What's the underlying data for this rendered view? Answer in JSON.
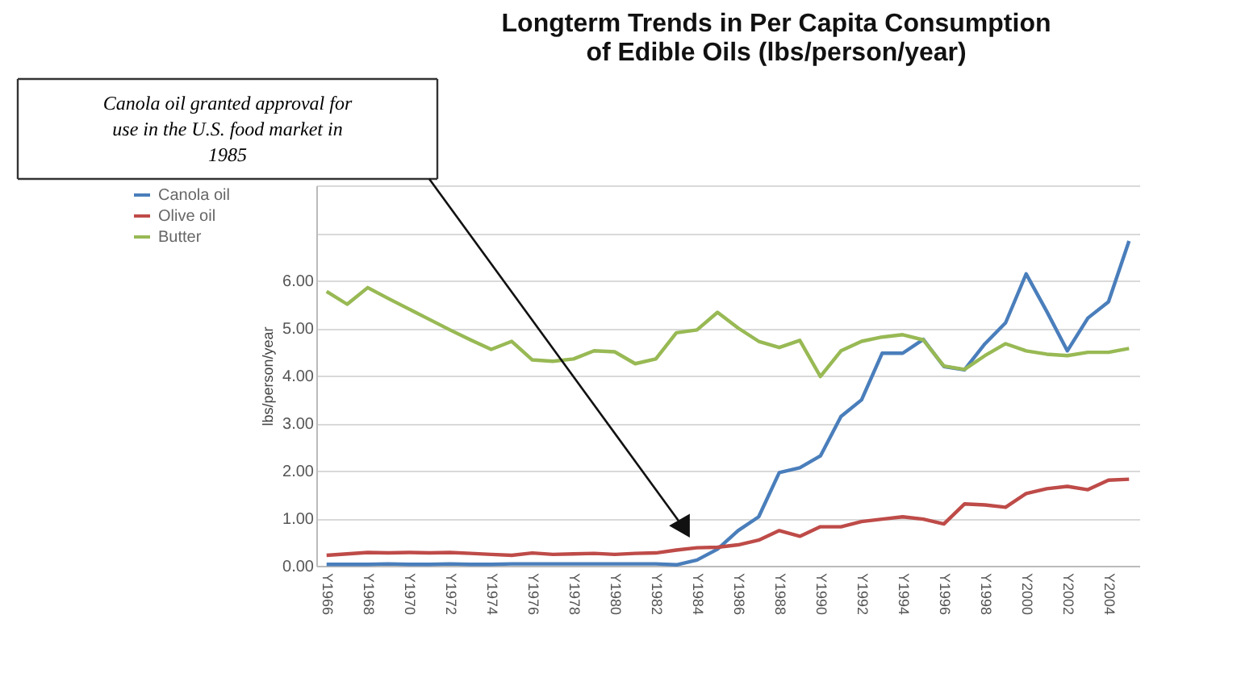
{
  "chart_data": {
    "type": "line",
    "title": [
      "Longterm Trends in Per Capita Consumption",
      "of Edible Oils (lbs/person/year)"
    ],
    "ylabel": "lbs/person/year",
    "categories": [
      "Y1966",
      null,
      "Y1968",
      null,
      "Y1970",
      null,
      "Y1972",
      null,
      "Y1974",
      null,
      "Y1976",
      null,
      "Y1978",
      null,
      "Y1980",
      null,
      "Y1982",
      null,
      "Y1984",
      null,
      "Y1986",
      null,
      "Y1988",
      null,
      "Y1990",
      null,
      "Y1992",
      null,
      "Y1994",
      null,
      "Y1996",
      null,
      "Y1998",
      null,
      "Y2000",
      null,
      "Y2002",
      null,
      "Y2004",
      null
    ],
    "series": [
      {
        "name": "Canola oil",
        "color": "#4a7ebb",
        "values": [
          0.03,
          0.03,
          0.03,
          0.04,
          0.03,
          0.03,
          0.04,
          0.03,
          0.03,
          0.04,
          0.04,
          0.04,
          0.04,
          0.04,
          0.04,
          0.04,
          0.04,
          0.02,
          0.12,
          0.35,
          0.74,
          1.03,
          1.96,
          2.06,
          2.31,
          3.14,
          3.49,
          4.47,
          4.47,
          4.76,
          4.19,
          4.12,
          4.67,
          5.11,
          6.14,
          5.35,
          4.52,
          5.21,
          5.55,
          6.83
        ]
      },
      {
        "name": "Olive oil",
        "color": "#be4b48",
        "values": [
          0.22,
          0.25,
          0.28,
          0.27,
          0.28,
          0.27,
          0.28,
          0.26,
          0.24,
          0.22,
          0.27,
          0.24,
          0.25,
          0.26,
          0.24,
          0.26,
          0.27,
          0.33,
          0.38,
          0.39,
          0.44,
          0.54,
          0.74,
          0.62,
          0.82,
          0.82,
          0.93,
          0.98,
          1.03,
          0.98,
          0.88,
          1.3,
          1.28,
          1.23,
          1.52,
          1.62,
          1.67,
          1.6,
          1.8,
          1.82
        ]
      },
      {
        "name": "Butter",
        "color": "#98b954",
        "values": [
          5.77,
          5.5,
          5.85,
          5.62,
          5.4,
          5.18,
          4.96,
          4.75,
          4.55,
          4.72,
          4.33,
          4.3,
          4.35,
          4.52,
          4.5,
          4.25,
          4.35,
          4.9,
          4.96,
          5.33,
          5.0,
          4.72,
          4.59,
          4.74,
          3.98,
          4.52,
          4.72,
          4.81,
          4.86,
          4.75,
          4.2,
          4.13,
          4.42,
          4.67,
          4.52,
          4.45,
          4.42,
          4.49,
          4.49,
          4.57
        ]
      }
    ],
    "ylim": [
      0,
      8
    ],
    "yticks": [
      {
        "value": 0,
        "label": "0.00"
      },
      {
        "value": 1,
        "label": "1.00"
      },
      {
        "value": 2,
        "label": "2.00"
      },
      {
        "value": 3,
        "label": "3.00"
      },
      {
        "value": 4,
        "label": "4.00"
      },
      {
        "value": 5,
        "label": "5.00"
      },
      {
        "value": 6,
        "label": "6.00"
      },
      {
        "value": 7,
        "label": null
      },
      {
        "value": 8,
        "label": null
      }
    ],
    "grid": "y",
    "legend": "left",
    "marker": "none",
    "line_style": "solid",
    "annotations": [
      "Canola oil granted approval for use in the U.S. food market in 1985"
    ]
  }
}
